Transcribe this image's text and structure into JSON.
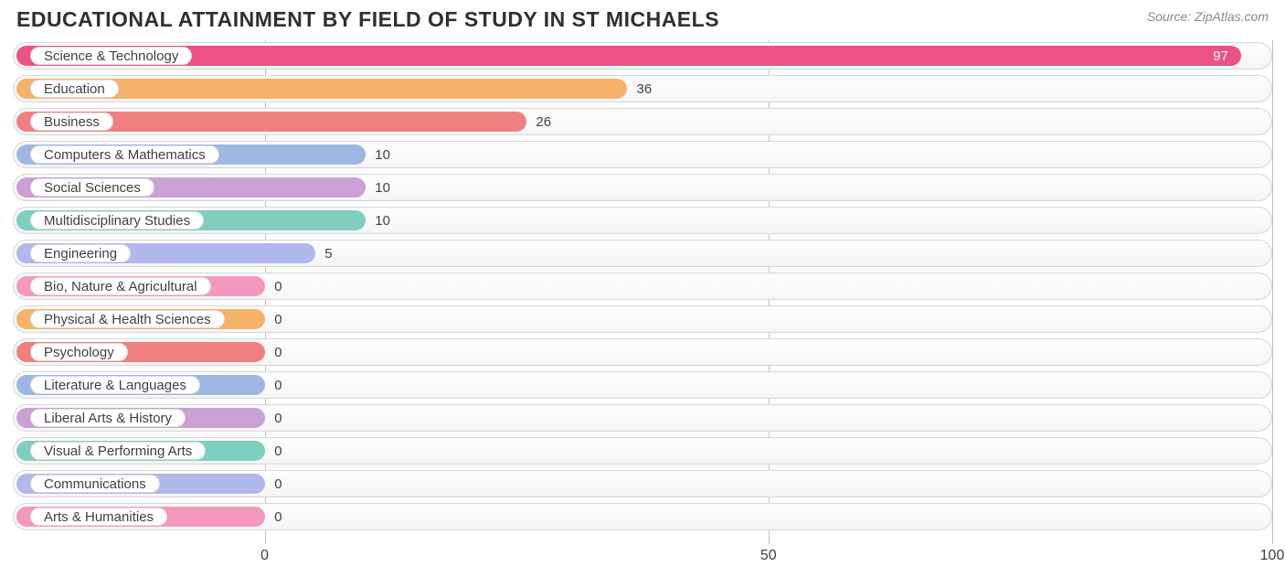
{
  "title": "EDUCATIONAL ATTAINMENT BY FIELD OF STUDY IN ST MICHAELS",
  "source": "Source: ZipAtlas.com",
  "chart": {
    "type": "bar-horizontal",
    "xlim": [
      0,
      100
    ],
    "zero_offset_pct": 20.0,
    "track_bg": "#f8f8f8",
    "track_border": "#d8d8d8",
    "grid_color": "#bfbfbf",
    "label_fontsize": 15,
    "value_fontsize": 15,
    "title_fontsize": 23,
    "ticks": [
      {
        "value": 0,
        "label": "0"
      },
      {
        "value": 50,
        "label": "50"
      },
      {
        "value": 100,
        "label": "100"
      }
    ],
    "bars": [
      {
        "label": "Science & Technology",
        "value": 97,
        "color": "#eb5286",
        "value_inside": true
      },
      {
        "label": "Education",
        "value": 36,
        "color": "#f4b26a",
        "value_inside": false
      },
      {
        "label": "Business",
        "value": 26,
        "color": "#f08080",
        "value_inside": false
      },
      {
        "label": "Computers & Mathematics",
        "value": 10,
        "color": "#9db8e2",
        "value_inside": false
      },
      {
        "label": "Social Sciences",
        "value": 10,
        "color": "#caa0d6",
        "value_inside": false
      },
      {
        "label": "Multidisciplinary Studies",
        "value": 10,
        "color": "#7ecfc0",
        "value_inside": false
      },
      {
        "label": "Engineering",
        "value": 5,
        "color": "#b0b8ec",
        "value_inside": false
      },
      {
        "label": "Bio, Nature & Agricultural",
        "value": 0,
        "color": "#f598bd",
        "value_inside": false
      },
      {
        "label": "Physical & Health Sciences",
        "value": 0,
        "color": "#f4b26a",
        "value_inside": false
      },
      {
        "label": "Psychology",
        "value": 0,
        "color": "#f08080",
        "value_inside": false
      },
      {
        "label": "Literature & Languages",
        "value": 0,
        "color": "#9db8e2",
        "value_inside": false
      },
      {
        "label": "Liberal Arts & History",
        "value": 0,
        "color": "#caa0d6",
        "value_inside": false
      },
      {
        "label": "Visual & Performing Arts",
        "value": 0,
        "color": "#7ecfc0",
        "value_inside": false
      },
      {
        "label": "Communications",
        "value": 0,
        "color": "#b0b8ec",
        "value_inside": false
      },
      {
        "label": "Arts & Humanities",
        "value": 0,
        "color": "#f598bd",
        "value_inside": false
      }
    ]
  }
}
